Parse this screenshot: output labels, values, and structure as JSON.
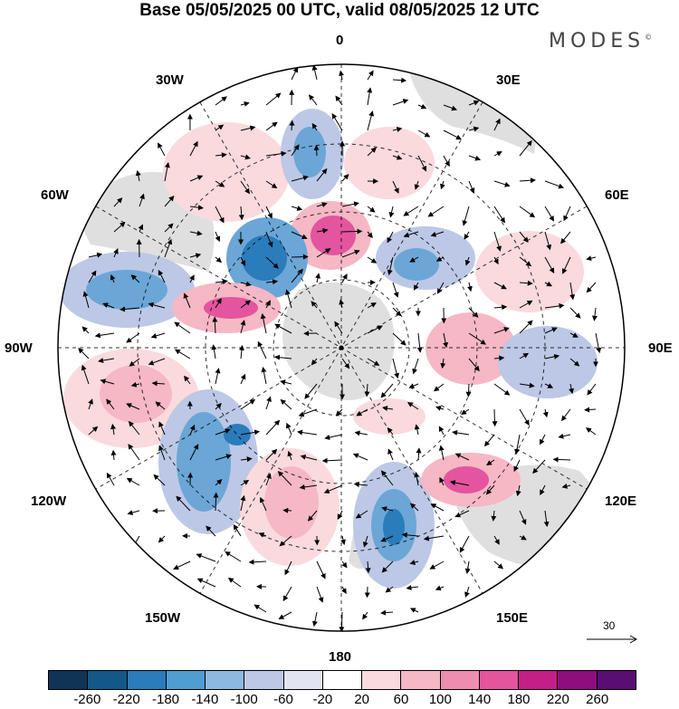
{
  "header": {
    "title": "Base 05/05/2025 00 UTC, valid 08/05/2025 12 UTC",
    "logo_text": "MODES",
    "logo_mark": "©"
  },
  "longitude_labels": {
    "lon_0": "0",
    "lon_30e": "30E",
    "lon_60e": "60E",
    "lon_90e": "90E",
    "lon_120e": "120E",
    "lon_150e": "150E",
    "lon_180": "180",
    "lon_150w": "150W",
    "lon_120w": "120W",
    "lon_90w": "90W",
    "lon_60w": "60W",
    "lon_30w": "30W"
  },
  "vector_reference": {
    "value": "30"
  },
  "colorbar": {
    "colors": [
      "#0f3556",
      "#14588a",
      "#2a7cba",
      "#4f9dd1",
      "#8db8e0",
      "#bcc8e6",
      "#e3e4f2",
      "#ffffff",
      "#fadadd",
      "#f5b8c4",
      "#ef8db0",
      "#e3559e",
      "#c41f86",
      "#8e0e7e",
      "#5a0e73"
    ],
    "tick_labels": [
      "-260",
      "-220",
      "-180",
      "-140",
      "-100",
      "-60",
      "-20",
      "20",
      "60",
      "100",
      "140",
      "180",
      "220",
      "260"
    ]
  },
  "anomaly_colors": {
    "blue_strong": "#2a7cba",
    "blue_mid": "#6ba6d6",
    "blue_light": "#bcc8e6",
    "pink_light": "#fadadd",
    "pink_mid": "#f5b8c4",
    "pink_strong": "#e3559e",
    "land": "#d6d6d6"
  }
}
